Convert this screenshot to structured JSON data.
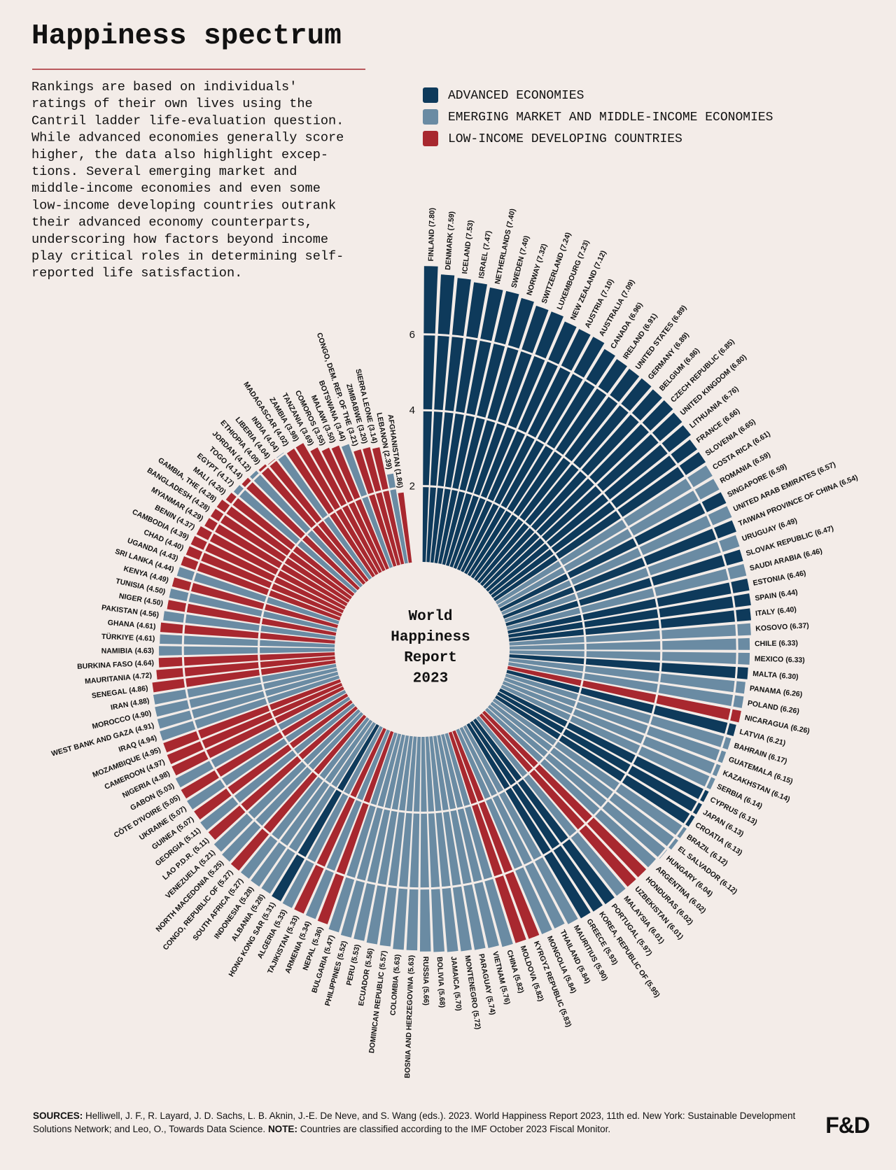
{
  "chart_data": {
    "type": "radial-bar",
    "title": "Happiness spectrum",
    "description": [
      "Rankings are based on individuals'",
      "ratings of their own lives using the",
      "Cantril ladder life-evaluation question.",
      "While advanced economies generally score",
      "higher, the data also highlight excep-",
      "tions. Several emerging market and",
      "middle-income economies and even some",
      "low-income developing countries outrank",
      "their advanced economy counterparts,",
      "underscoring how factors beyond income",
      "play critical roles in determining self-",
      "reported life satisfaction."
    ],
    "center_text": [
      "World",
      "Happiness",
      "Report",
      "2023"
    ],
    "legend": [
      {
        "name": "ADVANCED ECONOMIES",
        "color": "#0e3a5b"
      },
      {
        "name": "EMERGING MARKET AND MIDDLE-INCOME ECONOMIES",
        "color": "#6a8ba3"
      },
      {
        "name": "LOW-INCOME DEVELOPING COUNTRIES",
        "color": "#a8282f"
      }
    ],
    "categories": [
      "FINLAND",
      "DENMARK",
      "ICELAND",
      "ISRAEL",
      "NETHERLANDS",
      "SWEDEN",
      "NORWAY",
      "SWITZERLAND",
      "LUXEMBOURG",
      "NEW ZEALAND",
      "AUSTRIA",
      "AUSTRALIA",
      "CANADA",
      "IRELAND",
      "UNITED STATES",
      "GERMANY",
      "BELGIUM",
      "CZECH REPUBLIC",
      "UNITED KINGDOM",
      "LITHUANIA",
      "FRANCE",
      "SLOVENIA",
      "COSTA RICA",
      "ROMANIA",
      "SINGAPORE",
      "UNITED ARAB EMIRATES",
      "TAIWAN PROVINCE OF CHINA",
      "URUGUAY",
      "SLOVAK REPUBLIC",
      "SAUDI ARABIA",
      "ESTONIA",
      "SPAIN",
      "ITALY",
      "KOSOVO",
      "CHILE",
      "MEXICO",
      "MALTA",
      "PANAMA",
      "POLAND",
      "NICARAGUA",
      "LATVIA",
      "BAHRAIN",
      "GUATEMALA",
      "KAZAKHSTAN",
      "SERBIA",
      "CYPRUS",
      "JAPAN",
      "CROATIA",
      "BRAZIL",
      "EL SALVADOR",
      "HUNGARY",
      "ARGENTINA",
      "HONDURAS",
      "UZBEKISTAN",
      "MALAYSIA",
      "PORTUGAL",
      "KOREA, REPUBLIC OF",
      "GREECE",
      "MAURITIUS",
      "THAILAND",
      "MONGOLIA",
      "KYRGYZ REPUBLIC",
      "MOLDOVA",
      "CHINA",
      "VIETNAM",
      "PARAGUAY",
      "MONTENEGRO",
      "JAMAICA",
      "BOLIVIA",
      "RUSSIA",
      "BOSNIA AND HERZEGOVINA",
      "COLOMBIA",
      "DOMINICAN REPUBLIC",
      "ECUADOR",
      "PERU",
      "PHILIPPINES",
      "BULGARIA",
      "NEPAL",
      "ARMENIA",
      "TAJIKISTAN",
      "ALGERIA",
      "HONG KONG SAR",
      "ALBANIA",
      "INDONESIA",
      "SOUTH AFRICA",
      "CONGO, REPUBLIC OF",
      "NORTH MACEDONIA",
      "VENEZUELA",
      "LAO P.D.R.",
      "GEORGIA",
      "GUINEA",
      "UKRAINE",
      "CÔTE D'IVOIRE",
      "GABON",
      "NIGERIA",
      "CAMEROON",
      "MOZAMBIQUE",
      "IRAQ",
      "WEST BANK AND GAZA",
      "MOROCCO",
      "IRAN",
      "SENEGAL",
      "MAURITANIA",
      "BURKINA FASO",
      "NAMIBIA",
      "TÜRKIYE",
      "GHANA",
      "PAKISTAN",
      "NIGER",
      "TUNISIA",
      "KENYA",
      "SRI LANKA",
      "UGANDA",
      "CHAD",
      "CAMBODIA",
      "BENIN",
      "MYANMAR",
      "BANGLADESH",
      "GAMBIA, THE",
      "MALI",
      "EGYPT",
      "TOGO",
      "JORDAN",
      "ETHIOPIA",
      "LIBERIA",
      "INDIA",
      "MADAGASCAR",
      "ZAMBIA",
      "TANZANIA",
      "COMOROS",
      "MALAWI",
      "BOTSWANA",
      "CONGO, DEM. REP. OF THE",
      "ZIMBABWE",
      "SIERRA LEONE",
      "LEBANON",
      "AFGHANISTAN"
    ],
    "values": [
      7.8,
      7.59,
      7.53,
      7.47,
      7.4,
      7.4,
      7.32,
      7.24,
      7.23,
      7.12,
      7.1,
      7.09,
      6.96,
      6.91,
      6.89,
      6.89,
      6.86,
      6.85,
      6.8,
      6.76,
      6.66,
      6.65,
      6.61,
      6.59,
      6.59,
      6.57,
      6.54,
      6.49,
      6.47,
      6.46,
      6.46,
      6.44,
      6.4,
      6.37,
      6.33,
      6.33,
      6.3,
      6.26,
      6.26,
      6.26,
      6.21,
      6.17,
      6.15,
      6.14,
      6.14,
      6.13,
      6.13,
      6.13,
      6.12,
      6.12,
      6.04,
      6.02,
      6.02,
      6.01,
      6.01,
      5.97,
      5.95,
      5.93,
      5.9,
      5.84,
      5.84,
      5.83,
      5.82,
      5.82,
      5.76,
      5.74,
      5.72,
      5.7,
      5.68,
      5.66,
      5.63,
      5.63,
      5.57,
      5.56,
      5.53,
      5.52,
      5.47,
      5.36,
      5.34,
      5.33,
      5.33,
      5.31,
      5.28,
      5.28,
      5.27,
      5.27,
      5.25,
      5.21,
      5.11,
      5.11,
      5.07,
      5.07,
      5.05,
      5.03,
      4.98,
      4.97,
      4.95,
      4.94,
      4.91,
      4.9,
      4.88,
      4.86,
      4.72,
      4.64,
      4.63,
      4.61,
      4.61,
      4.56,
      4.5,
      4.5,
      4.49,
      4.44,
      4.43,
      4.4,
      4.39,
      4.37,
      4.29,
      4.28,
      4.28,
      4.2,
      4.17,
      4.14,
      4.12,
      4.09,
      4.04,
      4.04,
      4.02,
      3.98,
      3.69,
      3.55,
      3.5,
      3.44,
      3.21,
      3.2,
      3.14,
      2.39,
      1.86
    ],
    "value_labels": [
      "(7.80)",
      "(7.59)",
      "(7.53)",
      "(7.47)",
      "(7.40)",
      "(7.40)",
      "(7.32)",
      "(7.24)",
      "(7.23)",
      "(7.12)",
      "(7.10)",
      "(7.09)",
      "(6.96)",
      "(6.91)",
      "(6.89)",
      "(6.89)",
      "(6.86)",
      "(6.85)",
      "(6.80)",
      "(6.76)",
      "(6.66)",
      "(6.65)",
      "(6.61)",
      "(6.59)",
      "(6.59)",
      "(6.57)",
      "(6.54)",
      "(6.49)",
      "(6.47)",
      "(6.46)",
      "(6.46)",
      "(6.44)",
      "(6.40)",
      "(6.37)",
      "(6.33)",
      "(6.33)",
      "(6.30)",
      "(6.26)",
      "(6.26)",
      "(6.26)",
      "(6.21)",
      "(6.17)",
      "(6.15)",
      "(6.14)",
      "(6.14)",
      "(6.13)",
      "(6.13)",
      "(6.13)",
      "(6.12)",
      "(6.12)",
      "(6.04)",
      "(6.02)",
      "(6.02)",
      "(6.01)",
      "(6.01)",
      "(5.97)",
      "(5.95)",
      "(5.93)",
      "(5.90)",
      "(5.84)",
      "(5.84)",
      "(5.83)",
      "(5.82)",
      "(5.82)",
      "(5.76)",
      "(5.74)",
      "(5.72)",
      "(5.70)",
      "(5.68)",
      "(5.66)",
      "(5.63)",
      "(5.63)",
      "(5.57)",
      "(5.56)",
      "(5.53)",
      "(5.52)",
      "(5.47)",
      "(5.36)",
      "(5.34)",
      "(5.33)",
      "(5.33)",
      "(5.31)",
      "(5.28)",
      "(5.28)",
      "(5.27)",
      "(5.27)",
      "(5.25)",
      "(5.21)",
      "(5.11)",
      "(5.11)",
      "(5.07)",
      "(5.07)",
      "(5.05)",
      "(5.03)",
      "(4.98)",
      "(4.97)",
      "(4.95)",
      "(4.94)",
      "(4.91)",
      "(4.90)",
      "(4.88)",
      "(4.86)",
      "(4.72)",
      "(4.64)",
      "(4.63)",
      "(4.61)",
      "(4.61)",
      "(4.56)",
      "(4.50)",
      "(4.50)",
      "(4.49)",
      "(4.44)",
      "(4.43)",
      "(4.40)",
      "(4.39)",
      "(4.37)",
      "(4.29)",
      "(4.28)",
      "(4.28)",
      "(4.20)",
      "(4.17)",
      "(4.14)",
      "(4.12)",
      "(4.09)",
      "(4.04)",
      "(4.04)",
      "(4.02)",
      "(3.98)",
      "(3.69)",
      "(3.55)",
      "(3.50)",
      "(3.44)",
      "(3.21)",
      "(3.20)",
      "(3.14)",
      "(2.39)",
      "(1.86)"
    ],
    "colors": [
      "#0e3a5b",
      "#0e3a5b",
      "#0e3a5b",
      "#0e3a5b",
      "#0e3a5b",
      "#0e3a5b",
      "#0e3a5b",
      "#0e3a5b",
      "#0e3a5b",
      "#0e3a5b",
      "#0e3a5b",
      "#0e3a5b",
      "#0e3a5b",
      "#0e3a5b",
      "#0e3a5b",
      "#0e3a5b",
      "#0e3a5b",
      "#0e3a5b",
      "#0e3a5b",
      "#0e3a5b",
      "#0e3a5b",
      "#0e3a5b",
      "#6a8ba3",
      "#6a8ba3",
      "#0e3a5b",
      "#6a8ba3",
      "#0e3a5b",
      "#6a8ba3",
      "#0e3a5b",
      "#6a8ba3",
      "#0e3a5b",
      "#0e3a5b",
      "#0e3a5b",
      "#6a8ba3",
      "#6a8ba3",
      "#6a8ba3",
      "#0e3a5b",
      "#6a8ba3",
      "#6a8ba3",
      "#a8282f",
      "#0e3a5b",
      "#6a8ba3",
      "#6a8ba3",
      "#6a8ba3",
      "#6a8ba3",
      "#0e3a5b",
      "#0e3a5b",
      "#0e3a5b",
      "#6a8ba3",
      "#6a8ba3",
      "#6a8ba3",
      "#6a8ba3",
      "#a8282f",
      "#a8282f",
      "#6a8ba3",
      "#0e3a5b",
      "#0e3a5b",
      "#0e3a5b",
      "#6a8ba3",
      "#6a8ba3",
      "#6a8ba3",
      "#a8282f",
      "#a8282f",
      "#6a8ba3",
      "#6a8ba3",
      "#6a8ba3",
      "#6a8ba3",
      "#6a8ba3",
      "#6a8ba3",
      "#6a8ba3",
      "#6a8ba3",
      "#6a8ba3",
      "#6a8ba3",
      "#6a8ba3",
      "#6a8ba3",
      "#6a8ba3",
      "#6a8ba3",
      "#a8282f",
      "#6a8ba3",
      "#a8282f",
      "#6a8ba3",
      "#0e3a5b",
      "#6a8ba3",
      "#6a8ba3",
      "#6a8ba3",
      "#a8282f",
      "#6a8ba3",
      "#6a8ba3",
      "#a8282f",
      "#6a8ba3",
      "#a8282f",
      "#6a8ba3",
      "#a8282f",
      "#6a8ba3",
      "#a8282f",
      "#a8282f",
      "#a8282f",
      "#6a8ba3",
      "#6a8ba3",
      "#6a8ba3",
      "#6a8ba3",
      "#a8282f",
      "#a8282f",
      "#a8282f",
      "#6a8ba3",
      "#6a8ba3",
      "#a8282f",
      "#6a8ba3",
      "#a8282f",
      "#6a8ba3",
      "#a8282f",
      "#6a8ba3",
      "#a8282f",
      "#a8282f",
      "#a8282f",
      "#a8282f",
      "#a8282f",
      "#a8282f",
      "#a8282f",
      "#a8282f",
      "#6a8ba3",
      "#a8282f",
      "#6a8ba3",
      "#a8282f",
      "#a8282f",
      "#6a8ba3",
      "#a8282f",
      "#a8282f",
      "#a8282f",
      "#a8282f",
      "#a8282f",
      "#6a8ba3",
      "#a8282f",
      "#a8282f",
      "#a8282f",
      "#6a8ba3",
      "#a8282f"
    ],
    "ylim": [
      0,
      8
    ],
    "yticks": [
      2,
      4,
      6
    ],
    "grid": true,
    "sources_label": "SOURCES:",
    "sources": " Helliwell, J. F., R. Layard, J. D. Sachs, L. B. Aknin, J.-E. De Neve, and S. Wang (eds.). 2023. World Happiness Report 2023, 11th ed. New York: Sustainable Development Solutions Network; and Leo, O., Towards Data Science. ",
    "note_label": "NOTE:",
    "note": " Countries are classified according to the IMF October 2023 Fiscal Monitor.",
    "logo": "F&D"
  }
}
